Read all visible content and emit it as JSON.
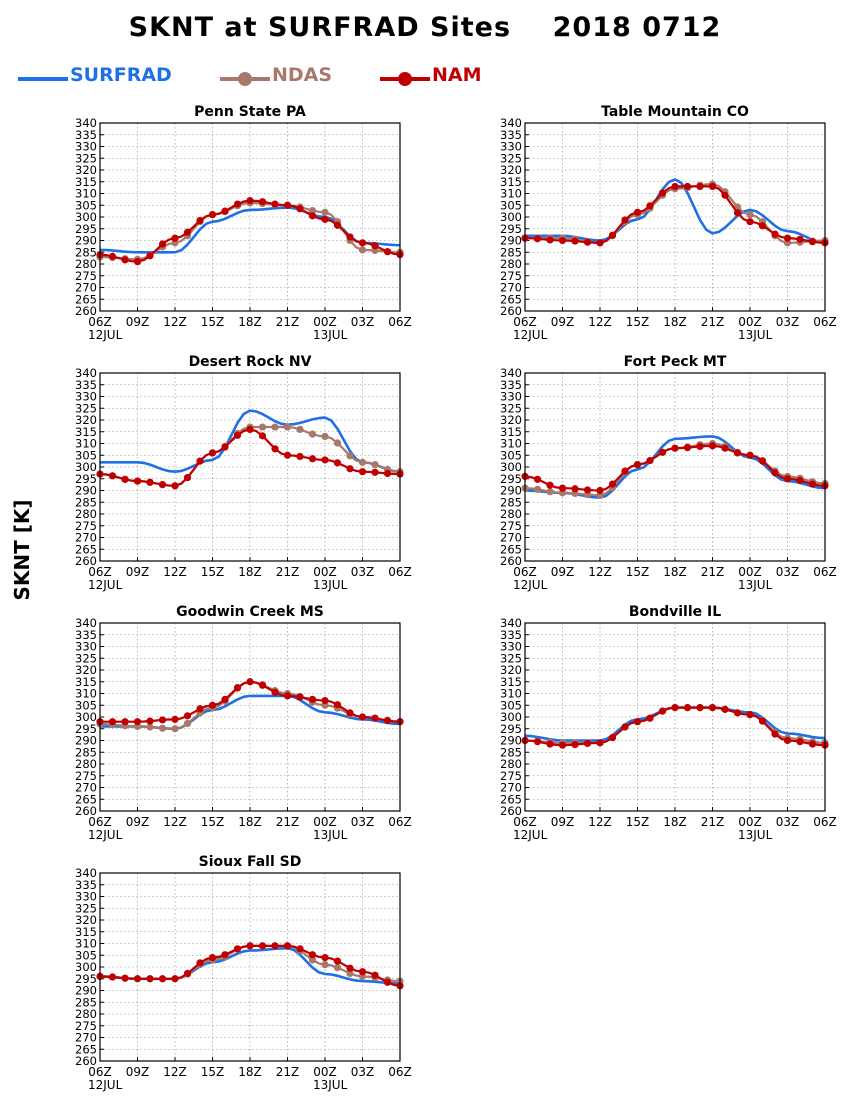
{
  "header": {
    "title": "SKNT at SURFRAD Sites    2018 0712",
    "ylabel": "SKNT [K]"
  },
  "legend": [
    {
      "name": "SURFRAD",
      "color": "#1f6fe6",
      "marker": false
    },
    {
      "name": "NDAS",
      "color": "#a8786a",
      "marker": true
    },
    {
      "name": "NAM",
      "color": "#c00000",
      "marker": true
    }
  ],
  "chart_data": [
    {
      "type": "line",
      "title": "Penn State PA",
      "x_ticks": [
        "06Z",
        "09Z",
        "12Z",
        "15Z",
        "18Z",
        "21Z",
        "00Z",
        "03Z",
        "06Z"
      ],
      "date_labels": [
        "12JUL",
        "13JUL"
      ],
      "ylim": [
        260,
        340
      ],
      "y_ticks": [
        260,
        265,
        270,
        275,
        280,
        285,
        290,
        295,
        300,
        305,
        310,
        315,
        320,
        325,
        330,
        335,
        340
      ],
      "grid": true,
      "hours": [
        0,
        3,
        6,
        9,
        12,
        15,
        18,
        21,
        24
      ],
      "series": [
        {
          "name": "SURFRAD",
          "values": [
            286,
            285,
            285,
            298,
            303,
            304,
            300,
            289,
            288
          ]
        },
        {
          "name": "NDAS",
          "values": [
            283,
            282,
            289,
            301,
            306,
            305,
            302,
            286,
            285
          ]
        },
        {
          "name": "NAM",
          "values": [
            284,
            281,
            291,
            301,
            307,
            305,
            299,
            289,
            284
          ]
        }
      ]
    },
    {
      "type": "line",
      "title": "Table Mountain CO",
      "x_ticks": [
        "06Z",
        "09Z",
        "12Z",
        "15Z",
        "18Z",
        "21Z",
        "00Z",
        "03Z",
        "06Z"
      ],
      "date_labels": [
        "12JUL",
        "13JUL"
      ],
      "ylim": [
        260,
        340
      ],
      "y_ticks": [
        260,
        265,
        270,
        275,
        280,
        285,
        290,
        295,
        300,
        305,
        310,
        315,
        320,
        325,
        330,
        335,
        340
      ],
      "grid": true,
      "hours": [
        0,
        3,
        6,
        9,
        12,
        15,
        18,
        21,
        24
      ],
      "series": [
        {
          "name": "SURFRAD",
          "values": [
            292,
            292,
            290,
            299,
            316,
            293,
            303,
            294,
            289
          ]
        },
        {
          "name": "NDAS",
          "values": [
            291,
            291,
            289,
            301,
            312,
            314,
            301,
            289,
            290
          ]
        },
        {
          "name": "NAM",
          "values": [
            291,
            290,
            289,
            302,
            313,
            313,
            298,
            291,
            289
          ]
        }
      ]
    },
    {
      "type": "line",
      "title": "Desert Rock NV",
      "x_ticks": [
        "06Z",
        "09Z",
        "12Z",
        "15Z",
        "18Z",
        "21Z",
        "00Z",
        "03Z",
        "06Z"
      ],
      "date_labels": [
        "12JUL",
        "13JUL"
      ],
      "ylim": [
        260,
        340
      ],
      "y_ticks": [
        260,
        265,
        270,
        275,
        280,
        285,
        290,
        295,
        300,
        305,
        310,
        315,
        320,
        325,
        330,
        335,
        340
      ],
      "grid": true,
      "hours": [
        0,
        3,
        6,
        9,
        12,
        15,
        18,
        21,
        24
      ],
      "series": [
        {
          "name": "SURFRAD",
          "values": [
            302,
            302,
            298,
            303,
            324,
            318,
            321,
            302,
            298
          ]
        },
        {
          "name": "NDAS",
          "values": [
            297,
            294,
            292,
            306,
            317,
            317,
            313,
            302,
            298
          ]
        },
        {
          "name": "NAM",
          "values": [
            297,
            294,
            292,
            306,
            316,
            305,
            303,
            298,
            297
          ]
        }
      ]
    },
    {
      "type": "line",
      "title": "Fort Peck MT",
      "x_ticks": [
        "06Z",
        "09Z",
        "12Z",
        "15Z",
        "18Z",
        "21Z",
        "00Z",
        "03Z",
        "06Z"
      ],
      "date_labels": [
        "12JUL",
        "13JUL"
      ],
      "ylim": [
        260,
        340
      ],
      "y_ticks": [
        260,
        265,
        270,
        275,
        280,
        285,
        290,
        295,
        300,
        305,
        310,
        315,
        320,
        325,
        330,
        335,
        340
      ],
      "grid": true,
      "hours": [
        0,
        3,
        6,
        9,
        12,
        15,
        18,
        21,
        24
      ],
      "series": [
        {
          "name": "SURFRAD",
          "values": [
            290,
            289,
            287,
            299,
            312,
            313,
            304,
            294,
            291
          ]
        },
        {
          "name": "NDAS",
          "values": [
            291,
            289,
            288,
            301,
            308,
            310,
            305,
            296,
            293
          ]
        },
        {
          "name": "NAM",
          "values": [
            296,
            291,
            290,
            301,
            308,
            309,
            305,
            295,
            292
          ]
        }
      ]
    },
    {
      "type": "line",
      "title": "Goodwin Creek MS",
      "x_ticks": [
        "06Z",
        "09Z",
        "12Z",
        "15Z",
        "18Z",
        "21Z",
        "00Z",
        "03Z",
        "06Z"
      ],
      "date_labels": [
        "12JUL",
        "13JUL"
      ],
      "ylim": [
        260,
        340
      ],
      "y_ticks": [
        260,
        265,
        270,
        275,
        280,
        285,
        290,
        295,
        300,
        305,
        310,
        315,
        320,
        325,
        330,
        335,
        340
      ],
      "grid": true,
      "hours": [
        0,
        3,
        6,
        9,
        12,
        15,
        18,
        21,
        24
      ],
      "series": [
        {
          "name": "SURFRAD",
          "values": [
            296,
            296,
            295,
            303,
            309,
            309,
            302,
            299,
            297
          ]
        },
        {
          "name": "NDAS",
          "values": [
            297,
            296,
            295,
            304,
            315,
            310,
            305,
            300,
            298
          ]
        },
        {
          "name": "NAM",
          "values": [
            298,
            298,
            299,
            305,
            315,
            309,
            307,
            300,
            298
          ]
        }
      ]
    },
    {
      "type": "line",
      "title": "Bondville IL",
      "x_ticks": [
        "06Z",
        "09Z",
        "12Z",
        "15Z",
        "18Z",
        "21Z",
        "00Z",
        "03Z",
        "06Z"
      ],
      "date_labels": [
        "12JUL",
        "13JUL"
      ],
      "ylim": [
        260,
        340
      ],
      "y_ticks": [
        260,
        265,
        270,
        275,
        280,
        285,
        290,
        295,
        300,
        305,
        310,
        315,
        320,
        325,
        330,
        335,
        340
      ],
      "grid": true,
      "hours": [
        0,
        3,
        6,
        9,
        12,
        15,
        18,
        21,
        24
      ],
      "series": [
        {
          "name": "SURFRAD",
          "values": [
            292,
            290,
            290,
            299,
            304,
            304,
            302,
            293,
            291
          ]
        },
        {
          "name": "NDAS",
          "values": [
            290,
            289,
            289,
            298,
            304,
            304,
            301,
            291,
            289
          ]
        },
        {
          "name": "NAM",
          "values": [
            290,
            288,
            289,
            298,
            304,
            304,
            301,
            290,
            288
          ]
        }
      ]
    },
    {
      "type": "line",
      "title": "Sioux Fall SD",
      "x_ticks": [
        "06Z",
        "09Z",
        "12Z",
        "15Z",
        "18Z",
        "21Z",
        "00Z",
        "03Z",
        "06Z"
      ],
      "date_labels": [
        "12JUL",
        "13JUL"
      ],
      "ylim": [
        260,
        340
      ],
      "y_ticks": [
        260,
        265,
        270,
        275,
        280,
        285,
        290,
        295,
        300,
        305,
        310,
        315,
        320,
        325,
        330,
        335,
        340
      ],
      "grid": true,
      "hours": [
        0,
        3,
        6,
        9,
        12,
        15,
        18,
        21,
        24
      ],
      "series": [
        {
          "name": "SURFRAD",
          "values": [
            296,
            295,
            295,
            302,
            307,
            308,
            297,
            294,
            293
          ]
        },
        {
          "name": "NDAS",
          "values": [
            296,
            295,
            295,
            303,
            309,
            309,
            301,
            296,
            294
          ]
        },
        {
          "name": "NAM",
          "values": [
            296,
            295,
            295,
            304,
            309,
            309,
            304,
            298,
            292
          ]
        }
      ]
    }
  ]
}
